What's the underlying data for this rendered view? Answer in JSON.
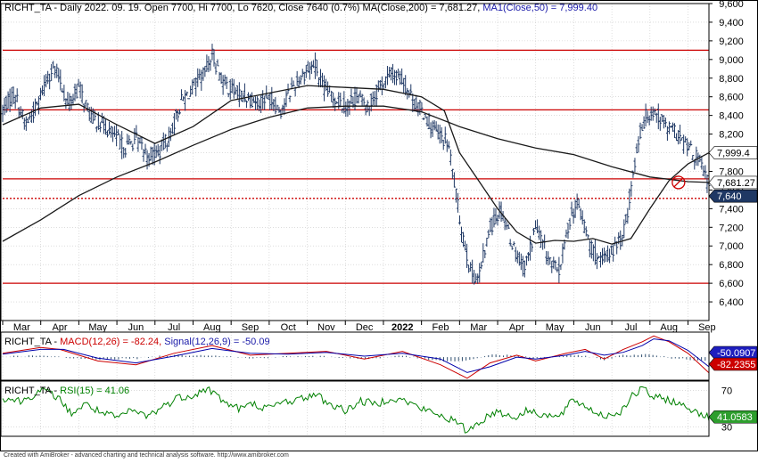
{
  "footer_text": "Created with AmiBroker - advanced charting and technical analysis software. http://www.amibroker.com",
  "colors": {
    "price_bar": "#1f3864",
    "ma200": "#1a1a1a",
    "ma50": "#1a1a1a",
    "hline": "#cc0000",
    "macd": "#cc0000",
    "signal": "#0000aa",
    "hist": "#2f4f6f",
    "rsi": "#008000",
    "badge_price": "#1f3864",
    "badge_ma": "#ffffff",
    "badge_macd": "#1e1ebe",
    "badge_signal": "#cc0000",
    "badge_rsi": "#2e9e2e",
    "grid": "#c8c8c8"
  },
  "chart_data": [
    {
      "type": "ohlc",
      "title": "RICHT_TA - Daily 2022. 09. 19. Open 7700, Hi 7700, Lo 7620, Close 7640 (0.7%) MA(Close,200) = 7,681.27, MA1(Close,50) = 7,999.40",
      "title_parts": {
        "main": "RICHT_TA - Daily 2022. 09. 19. Open 7700, Hi 7700, Lo 7620, Close 7640 (0.7%) MA(Close,200) = 7,681.27,",
        "ma1": " MA1(Close,50) = 7,999.40"
      },
      "x_labels": [
        "Mar",
        "Apr",
        "May",
        "Jun",
        "Jul",
        "Aug",
        "Sep",
        "Oct",
        "Nov",
        "Dec",
        "2022",
        "Feb",
        "Mar",
        "Apr",
        "May",
        "Jun",
        "Jul",
        "Aug",
        "Sep"
      ],
      "x_label_positions": [
        0.5,
        1.5,
        2.5,
        3.5,
        4.5,
        5.5,
        6.5,
        7.5,
        8.5,
        9.5,
        10.5,
        11.5,
        12.5,
        13.5,
        14.5,
        15.5,
        16.5,
        17.5,
        18.5
      ],
      "x_range": [
        0,
        18.55
      ],
      "ylim": [
        6200,
        9600
      ],
      "yticks": [
        6400,
        6600,
        6800,
        7000,
        7200,
        7400,
        7600,
        7800,
        8000,
        8200,
        8400,
        8600,
        8800,
        9000,
        9200,
        9400,
        9600
      ],
      "ytick_labels": [
        "6,400",
        "6,600",
        "6,800",
        "7,000",
        "7,200",
        "7,400",
        "7,600",
        "7,800",
        "8,000",
        "8,200",
        "8,400",
        "8,600",
        "8,800",
        "9,000",
        "9,200",
        "9,400",
        "9,600"
      ],
      "grid": true,
      "price_path": [
        [
          0.0,
          8450
        ],
        [
          0.3,
          8650
        ],
        [
          0.6,
          8300
        ],
        [
          0.9,
          8500
        ],
        [
          1.1,
          8750
        ],
        [
          1.3,
          8900
        ],
        [
          1.5,
          8800
        ],
        [
          1.7,
          8500
        ],
        [
          2.0,
          8700
        ],
        [
          2.3,
          8400
        ],
        [
          2.6,
          8300
        ],
        [
          2.9,
          8200
        ],
        [
          3.2,
          8050
        ],
        [
          3.5,
          8150
        ],
        [
          3.8,
          7980
        ],
        [
          4.1,
          8000
        ],
        [
          4.4,
          8200
        ],
        [
          4.7,
          8550
        ],
        [
          5.0,
          8700
        ],
        [
          5.3,
          8850
        ],
        [
          5.5,
          9050
        ],
        [
          5.8,
          8750
        ],
        [
          6.1,
          8650
        ],
        [
          6.4,
          8600
        ],
        [
          6.7,
          8550
        ],
        [
          7.0,
          8600
        ],
        [
          7.3,
          8450
        ],
        [
          7.6,
          8700
        ],
        [
          7.9,
          8850
        ],
        [
          8.2,
          8950
        ],
        [
          8.4,
          8700
        ],
        [
          8.7,
          8600
        ],
        [
          9.0,
          8500
        ],
        [
          9.3,
          8600
        ],
        [
          9.6,
          8500
        ],
        [
          9.9,
          8700
        ],
        [
          10.2,
          8850
        ],
        [
          10.5,
          8780
        ],
        [
          10.8,
          8550
        ],
        [
          11.1,
          8400
        ],
        [
          11.4,
          8200
        ],
        [
          11.7,
          8100
        ],
        [
          12.0,
          7300
        ],
        [
          12.3,
          6700
        ],
        [
          12.5,
          6650
        ],
        [
          12.8,
          7200
        ],
        [
          13.1,
          7400
        ],
        [
          13.4,
          7000
        ],
        [
          13.7,
          6750
        ],
        [
          14.0,
          7200
        ],
        [
          14.3,
          6900
        ],
        [
          14.6,
          6700
        ],
        [
          14.9,
          7300
        ],
        [
          15.1,
          7450
        ],
        [
          15.4,
          7050
        ],
        [
          15.7,
          6800
        ],
        [
          16.0,
          6950
        ],
        [
          16.3,
          7100
        ],
        [
          16.5,
          7600
        ],
        [
          16.7,
          8150
        ],
        [
          16.9,
          8400
        ],
        [
          17.1,
          8450
        ],
        [
          17.4,
          8300
        ],
        [
          17.7,
          8200
        ],
        [
          18.0,
          8050
        ],
        [
          18.3,
          7900
        ],
        [
          18.55,
          7640
        ]
      ],
      "series": [
        {
          "name": "MA(Close,200)",
          "points": [
            [
              0.0,
              7050
            ],
            [
              1.0,
              7280
            ],
            [
              2.0,
              7540
            ],
            [
              3.0,
              7740
            ],
            [
              4.0,
              7900
            ],
            [
              5.0,
              8080
            ],
            [
              6.0,
              8250
            ],
            [
              7.0,
              8380
            ],
            [
              8.0,
              8480
            ],
            [
              9.0,
              8500
            ],
            [
              10.0,
              8500
            ],
            [
              11.0,
              8440
            ],
            [
              12.0,
              8280
            ],
            [
              13.0,
              8150
            ],
            [
              14.0,
              8050
            ],
            [
              15.0,
              7980
            ],
            [
              16.0,
              7850
            ],
            [
              17.0,
              7740
            ],
            [
              18.0,
              7690
            ],
            [
              18.55,
              7681.27
            ]
          ]
        },
        {
          "name": "MA1(Close,50)",
          "points": [
            [
              0.0,
              8300
            ],
            [
              1.0,
              8480
            ],
            [
              2.0,
              8520
            ],
            [
              3.0,
              8300
            ],
            [
              4.0,
              8100
            ],
            [
              5.0,
              8280
            ],
            [
              6.0,
              8560
            ],
            [
              7.0,
              8640
            ],
            [
              8.0,
              8720
            ],
            [
              9.0,
              8700
            ],
            [
              10.0,
              8680
            ],
            [
              11.0,
              8600
            ],
            [
              11.6,
              8450
            ],
            [
              12.0,
              8000
            ],
            [
              12.5,
              7700
            ],
            [
              13.0,
              7400
            ],
            [
              13.5,
              7150
            ],
            [
              14.0,
              7030
            ],
            [
              14.5,
              7060
            ],
            [
              15.0,
              7050
            ],
            [
              15.5,
              7080
            ],
            [
              16.0,
              7020
            ],
            [
              16.5,
              7080
            ],
            [
              17.0,
              7400
            ],
            [
              17.5,
              7700
            ],
            [
              18.0,
              7880
            ],
            [
              18.55,
              7999.4
            ]
          ]
        }
      ],
      "horizontal_lines": [
        {
          "value": 9100,
          "style": "solid"
        },
        {
          "value": 8460,
          "style": "solid"
        },
        {
          "value": 7720,
          "style": "solid"
        },
        {
          "value": 7510,
          "style": "dotted"
        },
        {
          "value": 6600,
          "style": "solid"
        }
      ],
      "marker": {
        "x": 17.75,
        "y": 7681
      },
      "value_labels": [
        {
          "text": "7,999.4",
          "value": 7999.4,
          "style": "ma"
        },
        {
          "text": "7,681.27",
          "value": 7681.27,
          "style": "ma"
        },
        {
          "text": "7,640",
          "value": 7640,
          "style": "price"
        }
      ]
    },
    {
      "type": "line",
      "title": "RICHT_TA - MACD(12,26) = -82.24, Signal(12,26,9) = -50.09",
      "title_parts": {
        "prefix": "RICHT_TA - ",
        "macd": "MACD(12,26) = -82.24,",
        "signal": " Signal(12,26,9) = -50.09"
      },
      "ylim": [
        -120,
        130
      ],
      "macd_path": [
        [
          0.0,
          20
        ],
        [
          1.0,
          50
        ],
        [
          1.5,
          40
        ],
        [
          2.5,
          -20
        ],
        [
          3.5,
          -40
        ],
        [
          4.5,
          20
        ],
        [
          5.5,
          60
        ],
        [
          6.5,
          10
        ],
        [
          7.5,
          20
        ],
        [
          8.5,
          30
        ],
        [
          9.5,
          -10
        ],
        [
          10.5,
          30
        ],
        [
          11.5,
          -40
        ],
        [
          12.2,
          -110
        ],
        [
          12.8,
          -30
        ],
        [
          13.5,
          10
        ],
        [
          14.0,
          -20
        ],
        [
          14.8,
          20
        ],
        [
          15.3,
          40
        ],
        [
          15.8,
          -10
        ],
        [
          16.3,
          40
        ],
        [
          16.8,
          80
        ],
        [
          17.1,
          110
        ],
        [
          17.5,
          80
        ],
        [
          18.0,
          20
        ],
        [
          18.55,
          -82.24
        ]
      ],
      "signal_path": [
        [
          0.0,
          15
        ],
        [
          1.0,
          40
        ],
        [
          1.6,
          40
        ],
        [
          2.5,
          -5
        ],
        [
          3.5,
          -30
        ],
        [
          4.5,
          5
        ],
        [
          5.5,
          45
        ],
        [
          6.5,
          20
        ],
        [
          7.5,
          15
        ],
        [
          8.5,
          25
        ],
        [
          9.5,
          5
        ],
        [
          10.5,
          20
        ],
        [
          11.5,
          -10
        ],
        [
          12.2,
          -80
        ],
        [
          12.8,
          -50
        ],
        [
          13.5,
          0
        ],
        [
          14.0,
          -10
        ],
        [
          14.8,
          10
        ],
        [
          15.3,
          30
        ],
        [
          15.8,
          10
        ],
        [
          16.3,
          25
        ],
        [
          16.8,
          60
        ],
        [
          17.1,
          95
        ],
        [
          17.5,
          85
        ],
        [
          18.0,
          35
        ],
        [
          18.55,
          -50.09
        ]
      ],
      "value_labels": [
        {
          "text": "-50.0907",
          "value": -50.0907,
          "style": "signal_badge"
        },
        {
          "text": "-82.2355",
          "value": -82.2355,
          "style": "macd_badge"
        }
      ]
    },
    {
      "type": "line",
      "title": "RICHT_TA - RSI(15) = 41.06",
      "title_parts": {
        "prefix": "RICHT_TA - ",
        "rsi": "RSI(15) = 41.06"
      },
      "ylim": [
        20,
        80
      ],
      "yticks": [
        30,
        70
      ],
      "ytick_labels": [
        "30",
        "70"
      ],
      "rsi_path": [
        [
          0.0,
          62
        ],
        [
          0.5,
          58
        ],
        [
          1.0,
          70
        ],
        [
          1.4,
          64
        ],
        [
          1.8,
          45
        ],
        [
          2.2,
          55
        ],
        [
          2.6,
          45
        ],
        [
          3.0,
          40
        ],
        [
          3.4,
          48
        ],
        [
          3.8,
          42
        ],
        [
          4.2,
          52
        ],
        [
          4.6,
          62
        ],
        [
          5.0,
          65
        ],
        [
          5.4,
          72
        ],
        [
          5.8,
          58
        ],
        [
          6.2,
          50
        ],
        [
          6.6,
          55
        ],
        [
          7.0,
          50
        ],
        [
          7.4,
          58
        ],
        [
          7.8,
          60
        ],
        [
          8.2,
          66
        ],
        [
          8.6,
          55
        ],
        [
          9.0,
          48
        ],
        [
          9.4,
          58
        ],
        [
          9.8,
          55
        ],
        [
          10.2,
          62
        ],
        [
          10.6,
          58
        ],
        [
          11.0,
          50
        ],
        [
          11.4,
          44
        ],
        [
          11.8,
          38
        ],
        [
          12.2,
          26
        ],
        [
          12.6,
          38
        ],
        [
          13.0,
          48
        ],
        [
          13.4,
          40
        ],
        [
          13.8,
          48
        ],
        [
          14.2,
          44
        ],
        [
          14.6,
          40
        ],
        [
          15.0,
          60
        ],
        [
          15.4,
          50
        ],
        [
          15.8,
          42
        ],
        [
          16.2,
          46
        ],
        [
          16.5,
          62
        ],
        [
          16.8,
          72
        ],
        [
          17.1,
          62
        ],
        [
          17.5,
          60
        ],
        [
          17.9,
          52
        ],
        [
          18.2,
          48
        ],
        [
          18.55,
          41.06
        ]
      ],
      "value_labels": [
        {
          "text": "41.0583",
          "value": 41.0583,
          "style": "rsi_badge"
        }
      ]
    }
  ]
}
